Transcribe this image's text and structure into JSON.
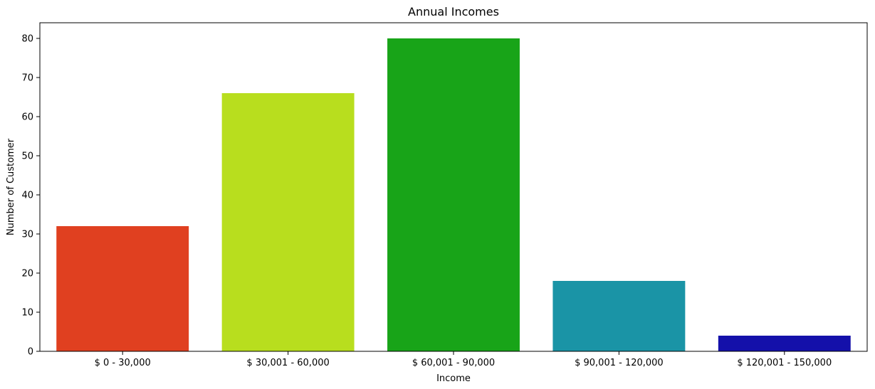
{
  "chart_data": {
    "type": "bar",
    "title": "Annual Incomes",
    "xlabel": "Income",
    "ylabel": "Number of Customer",
    "categories": [
      "$ 0 - 30,000",
      "$ 30,001 - 60,000",
      "$ 60,001 - 90,000",
      "$ 90,001 - 120,000",
      "$ 120,001 - 150,000"
    ],
    "values": [
      32,
      66,
      80,
      18,
      4
    ],
    "colors": [
      "#e04020",
      "#b8de1e",
      "#18a418",
      "#1a94a6",
      "#1410aa"
    ],
    "ylim": [
      0,
      84
    ],
    "yticks": [
      0,
      10,
      20,
      30,
      40,
      50,
      60,
      70,
      80
    ],
    "grid": false,
    "legend": "none"
  }
}
